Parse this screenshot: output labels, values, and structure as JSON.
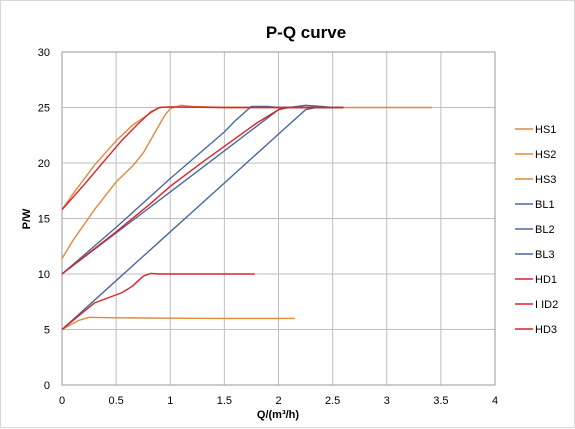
{
  "chart_data": {
    "type": "line",
    "title": "P-Q  curve",
    "xlabel": "Q/(m³/h)",
    "ylabel": "P/W",
    "xlim": [
      0,
      4
    ],
    "ylim": [
      0,
      30
    ],
    "xticks": [
      "0",
      "0.5",
      "1",
      "1.5",
      "2",
      "2.5",
      "3",
      "3.5",
      "4"
    ],
    "yticks": [
      "0",
      "5",
      "10",
      "15",
      "20",
      "25",
      "30"
    ],
    "grid": true,
    "legend_position": "right",
    "series": [
      {
        "name": "HS1",
        "color": "#e08a3c",
        "points": [
          [
            0,
            5
          ],
          [
            0.15,
            5.8
          ],
          [
            0.25,
            6.1
          ],
          [
            0.5,
            6.05
          ],
          [
            1,
            6.02
          ],
          [
            1.5,
            6.0
          ],
          [
            2.15,
            6.0
          ]
        ]
      },
      {
        "name": "HS2",
        "color": "#e08a3c",
        "points": [
          [
            0,
            11.4
          ],
          [
            0.1,
            13
          ],
          [
            0.3,
            15.8
          ],
          [
            0.5,
            18.3
          ],
          [
            0.65,
            19.7
          ],
          [
            0.75,
            20.9
          ],
          [
            0.85,
            22.6
          ],
          [
            0.95,
            24.3
          ],
          [
            1.0,
            24.9
          ],
          [
            1.1,
            25.2
          ],
          [
            1.2,
            25.1
          ],
          [
            1.5,
            25.0
          ],
          [
            2.0,
            25.0
          ],
          [
            2.5,
            25.0
          ]
        ]
      },
      {
        "name": "HS3",
        "color": "#e08a3c",
        "points": [
          [
            0,
            15.8
          ],
          [
            0.1,
            17.2
          ],
          [
            0.3,
            19.8
          ],
          [
            0.5,
            22.0
          ],
          [
            0.65,
            23.4
          ],
          [
            0.8,
            24.4
          ],
          [
            0.9,
            25.0
          ],
          [
            1.0,
            25.05
          ],
          [
            1.5,
            25.0
          ],
          [
            2.5,
            25.0
          ],
          [
            3.0,
            25.0
          ],
          [
            3.42,
            25.0
          ]
        ]
      },
      {
        "name": "BL1",
        "color": "#4a6a9c",
        "points": [
          [
            0,
            5
          ],
          [
            0.5,
            9.4
          ],
          [
            1.0,
            13.8
          ],
          [
            1.5,
            18.2
          ],
          [
            2.0,
            22.6
          ],
          [
            2.25,
            24.8
          ],
          [
            2.35,
            25.0
          ],
          [
            2.6,
            25.0
          ]
        ]
      },
      {
        "name": "BL2",
        "color": "#4a6a9c",
        "points": [
          [
            0,
            10
          ],
          [
            0.5,
            13.7
          ],
          [
            1.0,
            17.4
          ],
          [
            1.5,
            21.1
          ],
          [
            2.0,
            24.8
          ],
          [
            2.1,
            25.0
          ],
          [
            2.25,
            25.2
          ],
          [
            2.4,
            25.1
          ],
          [
            2.5,
            25.0
          ]
        ]
      },
      {
        "name": "BL3",
        "color": "#4a6a9c",
        "points": [
          [
            0,
            10
          ],
          [
            0.5,
            14.2
          ],
          [
            1.0,
            18.6
          ],
          [
            1.5,
            22.8
          ],
          [
            1.6,
            23.8
          ],
          [
            1.75,
            25.1
          ],
          [
            1.9,
            25.1
          ],
          [
            2.0,
            25.0
          ],
          [
            2.6,
            25.0
          ]
        ]
      },
      {
        "name": "HD1",
        "color": "#d9242a",
        "points": [
          [
            0,
            5
          ],
          [
            0.3,
            7.4
          ],
          [
            0.55,
            8.3
          ],
          [
            0.65,
            8.9
          ],
          [
            0.75,
            9.8
          ],
          [
            0.82,
            10.05
          ],
          [
            0.9,
            10.0
          ],
          [
            1.2,
            10.0
          ],
          [
            1.5,
            10.0
          ],
          [
            1.78,
            10.0
          ]
        ]
      },
      {
        "name": "HD2",
        "color": "#d9242a",
        "points": [
          [
            0,
            10
          ],
          [
            0.5,
            13.8
          ],
          [
            0.8,
            16.2
          ],
          [
            1.0,
            17.9
          ],
          [
            1.3,
            20.1
          ],
          [
            1.5,
            21.5
          ],
          [
            1.8,
            23.6
          ],
          [
            2.0,
            24.8
          ],
          [
            2.05,
            25.0
          ],
          [
            2.3,
            25.0
          ],
          [
            2.6,
            25.0
          ]
        ]
      },
      {
        "name": "HD3",
        "color": "#d9242a",
        "points": [
          [
            0,
            15.8
          ],
          [
            0.2,
            18.0
          ],
          [
            0.4,
            20.3
          ],
          [
            0.55,
            22.0
          ],
          [
            0.7,
            23.5
          ],
          [
            0.82,
            24.6
          ],
          [
            0.9,
            25.0
          ],
          [
            1.0,
            25.05
          ],
          [
            1.5,
            25.0
          ],
          [
            2.6,
            25.0
          ]
        ]
      }
    ],
    "legend_labels": [
      "HS1",
      "HS2",
      "HS3",
      "BL1",
      "BL2",
      "BL3",
      "HD1",
      "I ID2",
      "HD3"
    ]
  }
}
